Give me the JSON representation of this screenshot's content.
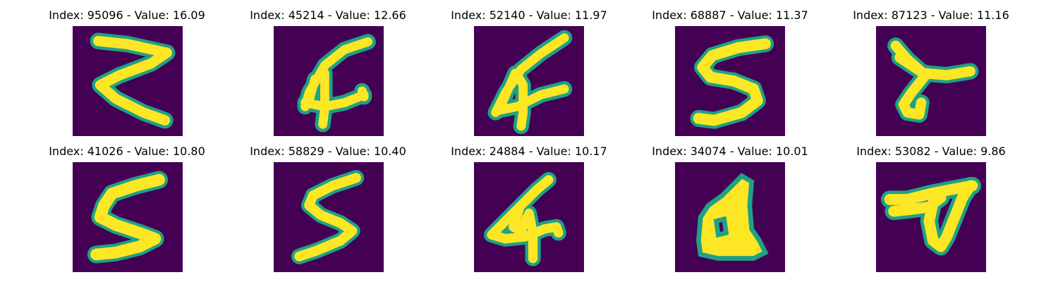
{
  "figure": {
    "panels": [
      {
        "index": "95096",
        "value": "16.09",
        "title": "Index: 95096 - Value: 16.09",
        "glyph": "z-shape"
      },
      {
        "index": "45214",
        "value": "12.66",
        "title": "Index: 45214 - Value: 12.66",
        "glyph": "four-shape"
      },
      {
        "index": "52140",
        "value": "11.97",
        "title": "Index: 52140 - Value: 11.97",
        "glyph": "four-shape"
      },
      {
        "index": "68887",
        "value": "11.37",
        "title": "Index: 68887 - Value: 11.37",
        "glyph": "s-shape"
      },
      {
        "index": "87123",
        "value": "11.16",
        "title": "Index: 87123 - Value: 11.16",
        "glyph": "y-shape"
      },
      {
        "index": "41026",
        "value": "10.80",
        "title": "Index: 41026 - Value: 10.80",
        "glyph": "s-shape"
      },
      {
        "index": "58829",
        "value": "10.40",
        "title": "Index: 58829 - Value: 10.40",
        "glyph": "s-shape"
      },
      {
        "index": "24884",
        "value": "10.17",
        "title": "Index: 24884 - Value: 10.17",
        "glyph": "four-shape"
      },
      {
        "index": "34074",
        "value": "10.01",
        "title": "Index: 34074 - Value: 10.01",
        "glyph": "a-shape"
      },
      {
        "index": "53082",
        "value": "9.86",
        "title": "Index: 53082 - Value: 9.86",
        "glyph": "d-shape"
      }
    ],
    "colors": {
      "background": "#440154",
      "stroke": "#fde725",
      "edge": "#1fa187"
    }
  }
}
